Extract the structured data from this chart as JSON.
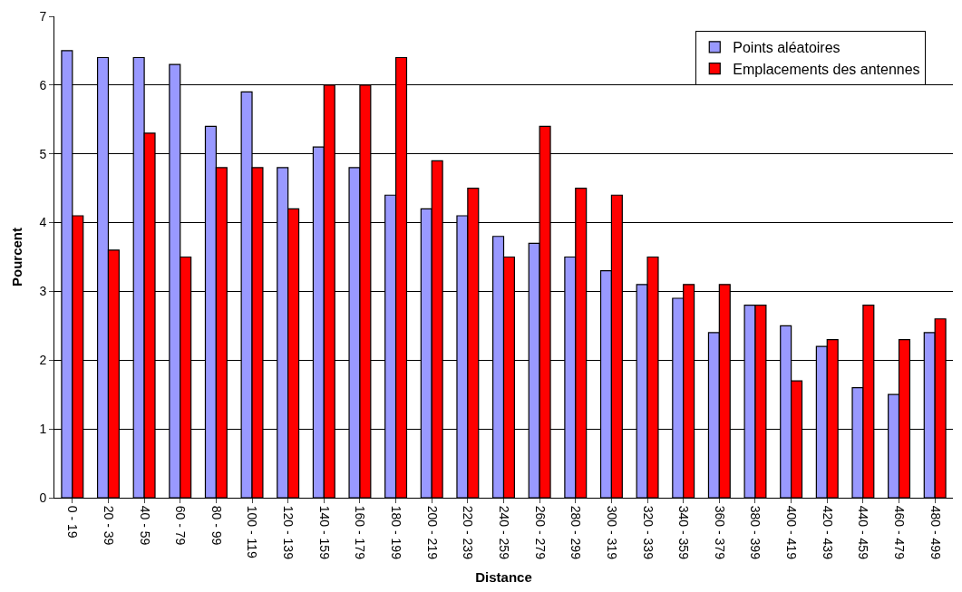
{
  "chart_data": {
    "type": "bar",
    "xlabel": "Distance",
    "ylabel": "Pourcent",
    "categories": [
      "0 - 19",
      "20 - 39",
      "40 - 59",
      "60 - 79",
      "80 - 99",
      "100 - 119",
      "120 - 139",
      "140 - 159",
      "160 - 179",
      "180 - 199",
      "200 - 219",
      "220 - 239",
      "240 - 259",
      "260 - 279",
      "280 - 299",
      "300 - 319",
      "320 - 339",
      "340 - 359",
      "360 - 379",
      "380 - 399",
      "400 - 419",
      "420 - 439",
      "440 - 459",
      "460 - 479",
      "480 - 499"
    ],
    "series": [
      {
        "name": "Points aléatoires",
        "color": "#9999ff",
        "values": [
          6.5,
          6.4,
          6.4,
          6.3,
          5.4,
          5.9,
          4.8,
          5.1,
          4.8,
          4.4,
          4.2,
          4.1,
          3.8,
          3.7,
          3.5,
          3.3,
          3.1,
          2.9,
          2.4,
          2.8,
          2.5,
          2.2,
          1.6,
          1.5,
          2.4
        ]
      },
      {
        "name": "Emplacements des antennes",
        "color": "#ff0000",
        "values": [
          4.1,
          3.6,
          5.3,
          3.5,
          4.8,
          4.8,
          4.2,
          6.0,
          6.0,
          6.4,
          4.9,
          4.5,
          3.5,
          5.4,
          4.5,
          4.4,
          3.5,
          3.1,
          3.1,
          2.8,
          1.7,
          2.3,
          2.8,
          2.3,
          2.6
        ]
      }
    ],
    "ylim": [
      0,
      7
    ],
    "yticks": [
      0,
      1,
      2,
      3,
      4,
      5,
      6,
      7
    ],
    "grid": "y",
    "legend": "top right"
  }
}
